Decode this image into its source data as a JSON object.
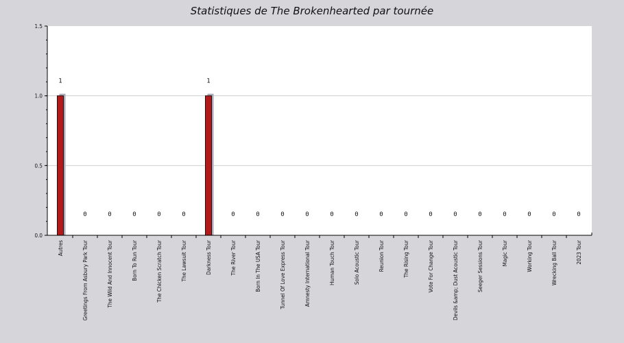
{
  "chart_data": {
    "type": "bar",
    "title": "Statistiques de The Brokenhearted par tournée",
    "xlabel": "",
    "ylabel": "",
    "ylim": [
      0,
      1.5
    ],
    "yticks": [
      "0.0",
      "0.5",
      "1.0",
      "1.5"
    ],
    "grid": true,
    "categories": [
      "Autres",
      "Greetings From Asbury Park Tour",
      "The Wild And Innocent Tour",
      "Born To Run Tour",
      "The Chicken Scratch Tour",
      "The Lawsuit Tour",
      "Darkness Tour",
      "The River Tour",
      "Born In The USA Tour",
      "Tunnel Of Love Express Tour",
      "Amnesty International Tour",
      "Human Touch Tour",
      "Solo Acoustic Tour",
      "Reunion Tour",
      "The Rising Tour",
      "Vote For Change Tour",
      "Devils &amp; Dust Acoustic Tour",
      "Seeger Sessions Tour",
      "Magic Tour",
      "Working Tour",
      "Wrecking Ball Tour",
      "2023 Tour"
    ],
    "values": [
      1,
      0,
      0,
      0,
      0,
      0,
      1,
      0,
      0,
      0,
      0,
      0,
      0,
      0,
      0,
      0,
      0,
      0,
      0,
      0,
      0,
      0
    ],
    "data_labels": [
      "1",
      "0",
      "0",
      "0",
      "0",
      "0",
      "1",
      "0",
      "0",
      "0",
      "0",
      "0",
      "0",
      "0",
      "0",
      "0",
      "0",
      "0",
      "0",
      "0",
      "0",
      "0"
    ],
    "colors": {
      "bar": "#b01c1c",
      "bar_border": "#2a0a0a",
      "bar_shadow": "#a9abb6",
      "plot_bg": "#ffffff",
      "page_bg": "#d6d5da",
      "grid": "#cfcfcf",
      "axis": "#000000"
    }
  }
}
